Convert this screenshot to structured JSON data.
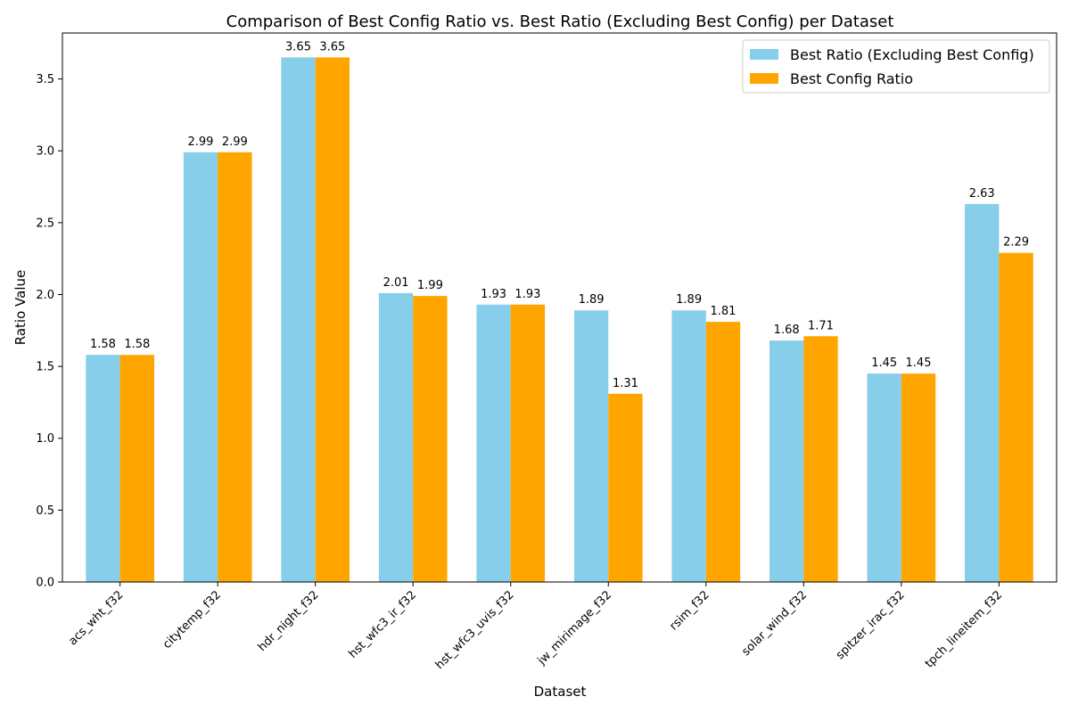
{
  "chart_data": {
    "type": "bar",
    "title": "Comparison of Best Config Ratio vs. Best Ratio (Excluding Best Config) per Dataset",
    "xlabel": "Dataset",
    "ylabel": "Ratio Value",
    "ylim": [
      0,
      3.82
    ],
    "yticks": [
      "0.0",
      "0.5",
      "1.0",
      "1.5",
      "2.0",
      "2.5",
      "3.0",
      "3.5"
    ],
    "grid": false,
    "legend_position": "top-right",
    "categories": [
      "acs_wht_f32",
      "citytemp_f32",
      "hdr_night_f32",
      "hst_wfc3_ir_f32",
      "hst_wfc3_uvis_f32",
      "jw_mirimage_f32",
      "rsim_f32",
      "solar_wind_f32",
      "spitzer_irac_f32",
      "tpch_lineitem_f32"
    ],
    "series": [
      {
        "name": "Best Ratio (Excluding Best Config)",
        "color": "#87ceeb",
        "values": [
          1.58,
          2.99,
          3.65,
          2.01,
          1.93,
          1.89,
          1.89,
          1.68,
          1.45,
          2.63
        ],
        "labels": [
          "1.58",
          "2.99",
          "3.65",
          "2.01",
          "1.93",
          "1.89",
          "1.89",
          "1.68",
          "1.45",
          "2.63"
        ]
      },
      {
        "name": "Best Config Ratio",
        "color": "#ffa500",
        "values": [
          1.58,
          2.99,
          3.65,
          1.99,
          1.93,
          1.31,
          1.81,
          1.71,
          1.45,
          2.29
        ],
        "labels": [
          "1.58",
          "2.99",
          "3.65",
          "1.99",
          "1.93",
          "1.31",
          "1.81",
          "1.71",
          "1.45",
          "2.29"
        ]
      }
    ]
  }
}
